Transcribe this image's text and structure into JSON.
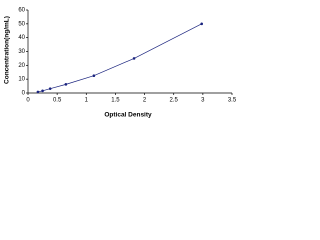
{
  "chart_data": {
    "type": "scatter",
    "x_label": "Optical Density",
    "y_label": "Concentration(ng/mL)",
    "x": [
      0.17,
      0.25,
      0.38,
      0.65,
      1.13,
      1.82,
      2.98
    ],
    "series": [
      {
        "color": "#1a237e",
        "values": [
          0.78,
          1.56,
          3.12,
          6.25,
          12.5,
          25,
          50
        ]
      }
    ],
    "line": true,
    "line_color": "#1a237e",
    "xlim": [
      0,
      3.5
    ],
    "xticks": [
      0,
      0.5,
      1,
      1.5,
      2,
      2.5,
      3,
      3.5
    ],
    "ylim": [
      0,
      60
    ],
    "yticks": [
      0,
      10,
      20,
      30,
      40,
      50,
      60
    ]
  }
}
